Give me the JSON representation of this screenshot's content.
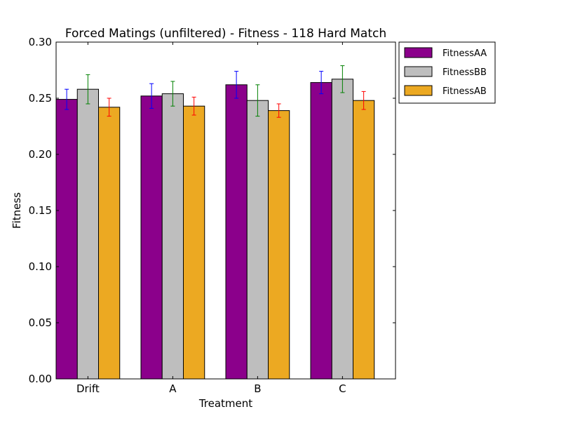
{
  "chart_data": {
    "type": "bar",
    "title": "Forced Matings (unfiltered) - Fitness - 118 Hard Match",
    "xlabel": "Treatment",
    "ylabel": "Fitness",
    "ylim": [
      0,
      0.3
    ],
    "yticks": [
      "0.00",
      "0.05",
      "0.10",
      "0.15",
      "0.20",
      "0.25",
      "0.30"
    ],
    "categories": [
      "Drift",
      "A",
      "B",
      "C"
    ],
    "grid": false,
    "legend_position": "outside-top-right",
    "series": [
      {
        "name": "FitnessAA",
        "color": "#8b008b",
        "error_color": "#0000ff",
        "values": [
          0.249,
          0.252,
          0.262,
          0.264
        ],
        "errors": [
          0.009,
          0.011,
          0.012,
          0.01
        ]
      },
      {
        "name": "FitnessBB",
        "color": "#bebebe",
        "error_color": "#008000",
        "values": [
          0.258,
          0.254,
          0.248,
          0.267
        ],
        "errors": [
          0.013,
          0.011,
          0.014,
          0.012
        ]
      },
      {
        "name": "FitnessAB",
        "color": "#eca922",
        "error_color": "#ff0000",
        "values": [
          0.242,
          0.243,
          0.239,
          0.248
        ],
        "errors": [
          0.008,
          0.008,
          0.006,
          0.008
        ]
      }
    ]
  }
}
